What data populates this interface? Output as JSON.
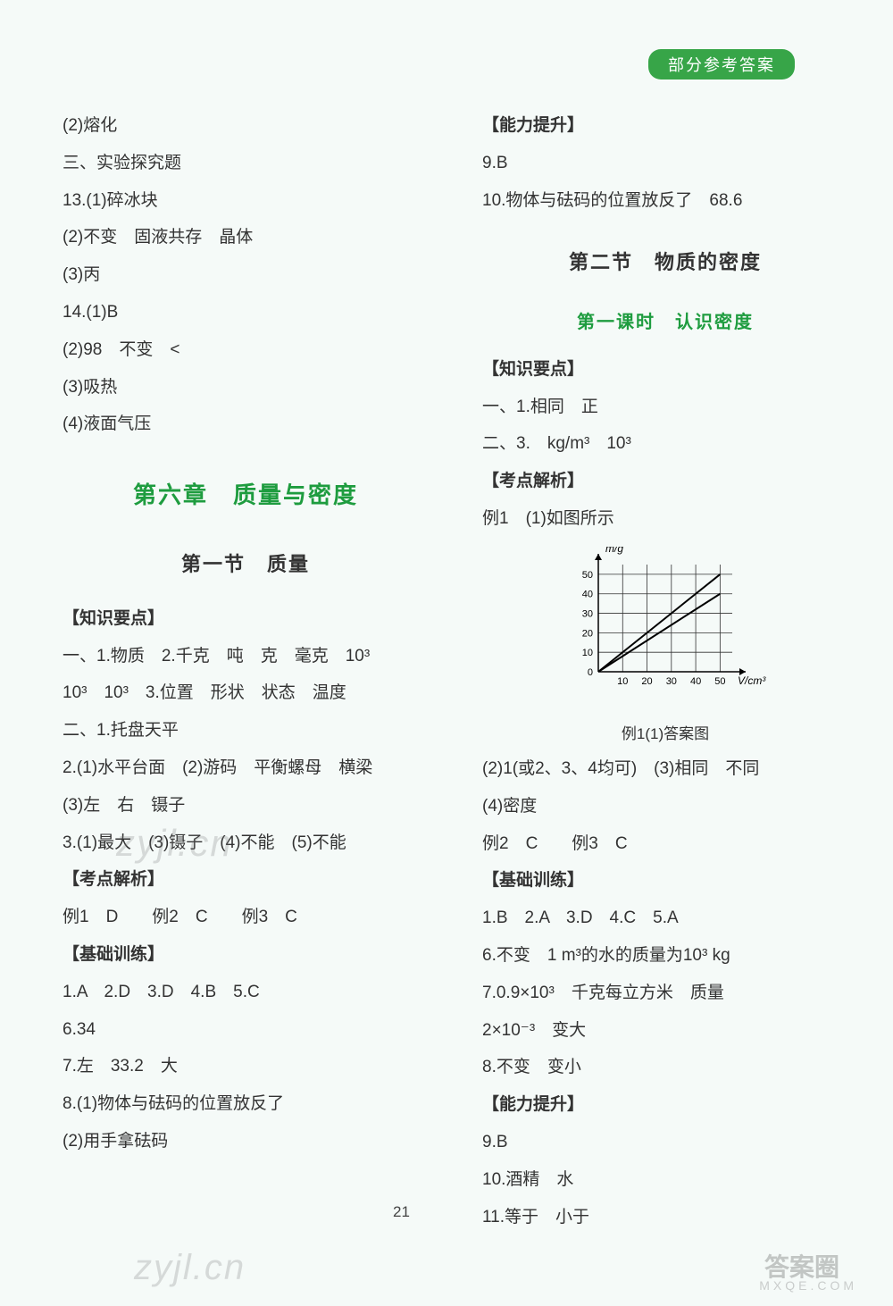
{
  "header_badge": "部分参考答案",
  "left": {
    "l1": "(2)熔化",
    "l2": "三、实验探究题",
    "l3": "13.(1)碎冰块",
    "l4": "(2)不变　固液共存　晶体",
    "l5": "(3)丙",
    "l6": "14.(1)B",
    "l7": "(2)98　不变　<",
    "l8": "(3)吸热",
    "l9": "(4)液面气压",
    "chapter": "第六章　质量与密度",
    "section": "第一节　质量",
    "kb": "【知识要点】",
    "k1": "一、1.物质　2.千克　吨　克　毫克　10³",
    "k2": "10³　10³　3.位置　形状　状态　温度",
    "k3": "二、1.托盘天平",
    "k4": "2.(1)水平台面　(2)游码　平衡螺母　横梁",
    "k5": "(3)左　右　镊子",
    "k6": "3.(1)最大　(3)镊子　(4)不能　(5)不能",
    "kd": "【考点解析】",
    "kd1": "例1　D　　例2　C　　例3　C",
    "jc": "【基础训练】",
    "jc1": "1.A　2.D　3.D　4.B　5.C",
    "jc2": "6.34",
    "jc3": "7.左　33.2　大",
    "jc4": "8.(1)物体与砝码的位置放反了",
    "jc5": "(2)用手拿砝码"
  },
  "right": {
    "nl": "【能力提升】",
    "nl1": "9.B",
    "nl2": "10.物体与砝码的位置放反了　68.6",
    "section2": "第二节　物质的密度",
    "sub": "第一课时　认识密度",
    "kb": "【知识要点】",
    "k1": "一、1.相同　正",
    "k2": "二、3.　kg/m³　10³",
    "kd": "【考点解析】",
    "kd1": "例1　(1)如图所示",
    "chart": {
      "type": "line",
      "title_y": "m/g",
      "title_x": "V/cm³",
      "xlim": [
        0,
        55
      ],
      "ylim": [
        0,
        55
      ],
      "xtick_labels": [
        "0",
        "10",
        "20",
        "30",
        "40",
        "50"
      ],
      "ytick_labels": [
        "0",
        "10",
        "20",
        "30",
        "40",
        "50"
      ],
      "grid_color": "#333333",
      "background_color": "#f5faf8",
      "lines": [
        {
          "points": [
            [
              0,
              0
            ],
            [
              50,
              50
            ]
          ],
          "color": "#000000",
          "width": 2
        },
        {
          "points": [
            [
              0,
              0
            ],
            [
              50,
              40
            ]
          ],
          "color": "#000000",
          "width": 2
        }
      ],
      "axis_font_size": 11
    },
    "chart_caption": "例1(1)答案图",
    "kd2": "(2)1(或2、3、4均可)　(3)相同　不同",
    "kd3": "(4)密度",
    "kd4": "例2　C　　例3　C",
    "jc": "【基础训练】",
    "jc1": "1.B　2.A　3.D　4.C　5.A",
    "jc2": "6.不变　1 m³的水的质量为10³ kg",
    "jc3": "7.0.9×10³　千克每立方米　质量",
    "jc4": "2×10⁻³　变大",
    "jc5": "8.不变　变小",
    "nl2l": "【能力提升】",
    "nl3": "9.B",
    "nl4": "10.酒精　水",
    "nl5": "11.等于　小于"
  },
  "page_num": "21",
  "watermark1": "zyjl.cn",
  "watermark2": "zyjl.cn",
  "wm_brand": "答案圈",
  "wm_url": "MXQE.COM"
}
